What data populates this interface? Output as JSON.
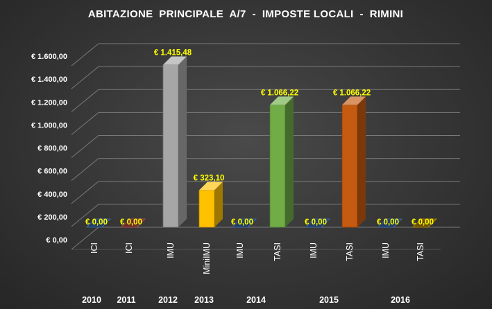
{
  "chart_data": {
    "type": "bar",
    "title": "ABITAZIONE  PRINCIPALE  A/7  -  IMPOSTE LOCALI  -  RIMINI",
    "xlabel": "",
    "ylabel": "",
    "ylim": [
      0,
      1600
    ],
    "y_ticks": [
      "€ 0,00",
      "€ 200,00",
      "€ 400,00",
      "€ 600,00",
      "€ 800,00",
      "€ 1.000,00",
      "€ 1.200,00",
      "€ 1.400,00",
      "€ 1.600,00"
    ],
    "y_tick_values": [
      0,
      200,
      400,
      600,
      800,
      1000,
      1200,
      1400,
      1600
    ],
    "grid": true,
    "legend": "none",
    "bars": [
      {
        "category": "ICI",
        "year": "2010",
        "value": 0,
        "label": "€ 0,00",
        "color": "#3d6fb8"
      },
      {
        "category": "ICI",
        "year": "2011",
        "value": 0,
        "label": "€ 0,00",
        "color": "#c0504d"
      },
      {
        "category": "IMU",
        "year": "2012",
        "value": 1415.48,
        "label": "€ 1.415,48",
        "color": "#a6a6a6"
      },
      {
        "category": "MiniIMU",
        "year": "2013",
        "value": 323.1,
        "label": "€ 323,10",
        "color": "#ffc000"
      },
      {
        "category": "IMU",
        "year": "2014",
        "value": 0,
        "label": "€ 0,00",
        "color": "#3d6fb8"
      },
      {
        "category": "TASI",
        "year": "2014",
        "value": 1066.22,
        "label": "€ 1.066,22",
        "color": "#70ad47"
      },
      {
        "category": "IMU",
        "year": "2015",
        "value": 0,
        "label": "€ 0,00",
        "color": "#3d6fb8"
      },
      {
        "category": "TASI",
        "year": "2015",
        "value": 1066.22,
        "label": "€ 1.066,22",
        "color": "#c55a11"
      },
      {
        "category": "IMU",
        "year": "2016",
        "value": 0,
        "label": "€ 0,00",
        "color": "#3d6fb8"
      },
      {
        "category": "TASI",
        "year": "2016",
        "value": 0,
        "label": "€ 0,00",
        "color": "#bf9000"
      }
    ],
    "year_groups": [
      {
        "year": "2010",
        "bars": [
          0
        ]
      },
      {
        "year": "2011",
        "bars": [
          1
        ]
      },
      {
        "year": "2012",
        "bars": [
          2
        ]
      },
      {
        "year": "2013",
        "bars": [
          3
        ]
      },
      {
        "year": "2014",
        "bars": [
          4,
          5
        ]
      },
      {
        "year": "2015",
        "bars": [
          6,
          7
        ]
      },
      {
        "year": "2016",
        "bars": [
          8,
          9
        ]
      }
    ]
  }
}
